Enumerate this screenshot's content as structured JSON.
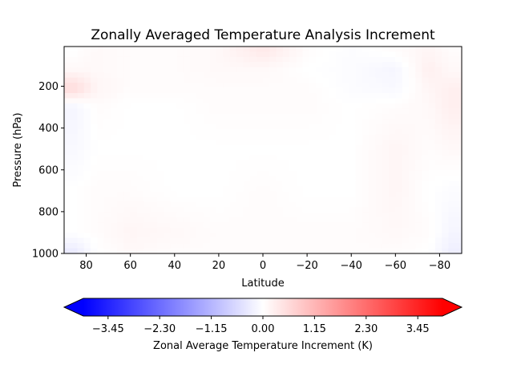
{
  "chart_data": {
    "type": "heatmap",
    "title": "Zonally Averaged Temperature Analysis Increment",
    "xlabel": "Latitude",
    "ylabel": "Pressure (hPa)",
    "x_ticks": [
      80,
      60,
      40,
      20,
      0,
      -20,
      -40,
      -60,
      -80
    ],
    "y_ticks": [
      200,
      400,
      600,
      800,
      1000
    ],
    "xlim": [
      90,
      -90
    ],
    "ylim": [
      1000,
      10
    ],
    "colormap": "bwr",
    "colorbar": {
      "label": "Zonal Average Temperature Increment (K)",
      "ticks": [
        "−3.45",
        "−2.30",
        "−1.15",
        "0.00",
        "1.15",
        "2.30",
        "3.45"
      ],
      "tick_values": [
        -3.45,
        -2.3,
        -1.15,
        0.0,
        1.15,
        2.3,
        3.45
      ],
      "range": [
        -4.0,
        4.0
      ],
      "extend": "both",
      "colors": {
        "min": "#0000ff",
        "mid": "#ffffff",
        "max": "#ff0000"
      }
    },
    "field": {
      "latitudes": [
        85,
        75,
        60,
        40,
        20,
        0,
        -20,
        -40,
        -60,
        -75,
        -85
      ],
      "pressures": [
        30,
        120,
        210,
        300,
        500,
        700,
        900,
        990
      ],
      "values": [
        [
          0.0,
          0.1,
          0.05,
          0.05,
          0.1,
          0.35,
          0.05,
          -0.05,
          0.05,
          0.15,
          0.05
        ],
        [
          0.1,
          0.1,
          0.05,
          0.05,
          0.1,
          0.1,
          0.0,
          -0.05,
          -0.15,
          0.25,
          0.1
        ],
        [
          0.55,
          0.15,
          0.05,
          0.05,
          0.05,
          0.05,
          0.05,
          -0.05,
          -0.1,
          0.15,
          0.25
        ],
        [
          -0.15,
          0.05,
          0.0,
          0.0,
          0.05,
          0.05,
          0.05,
          0.0,
          0.05,
          0.1,
          0.25
        ],
        [
          -0.1,
          0.0,
          0.0,
          0.0,
          0.0,
          0.0,
          0.0,
          0.0,
          0.15,
          0.05,
          0.1
        ],
        [
          0.0,
          0.05,
          0.05,
          0.0,
          0.0,
          0.05,
          0.0,
          0.0,
          0.15,
          0.0,
          -0.05
        ],
        [
          0.0,
          0.05,
          0.15,
          0.1,
          0.05,
          0.05,
          0.05,
          0.05,
          0.1,
          0.05,
          -0.15
        ],
        [
          -0.3,
          0.0,
          0.1,
          0.05,
          0.05,
          0.05,
          0.05,
          0.05,
          0.05,
          0.0,
          -0.25
        ]
      ]
    }
  }
}
